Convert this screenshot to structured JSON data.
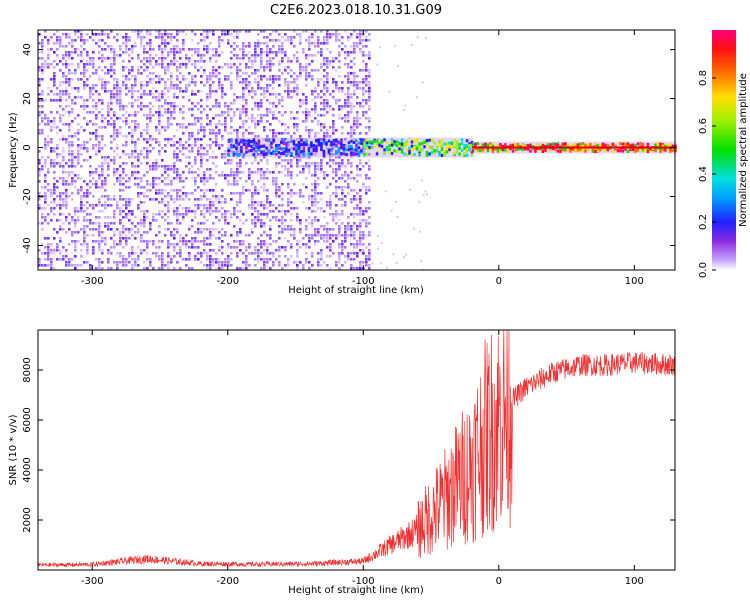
{
  "title": "C2E6.2023.018.10.31.G09",
  "colors": {
    "snr_line": "#f03030",
    "axis": "#000000"
  },
  "chart_data": [
    {
      "type": "heatmap",
      "xlabel": "Height of straight line (km)",
      "ylabel": "Frequency (Hz)",
      "xlim": [
        -340,
        130
      ],
      "ylim": [
        -50,
        48
      ],
      "xticks": [
        -300,
        -200,
        -100,
        0,
        100
      ],
      "yticks": [
        -40,
        -20,
        0,
        20,
        40
      ],
      "colorbar": {
        "label": "Normalized spectral amplitude",
        "range": [
          0,
          1
        ],
        "ticks": [
          0.0,
          0.2,
          0.4,
          0.6,
          0.8
        ],
        "colormap": "rainbow"
      },
      "noise_region_x": [
        -340,
        -95
      ],
      "signal_center_freq": 0,
      "signal_segments": [
        {
          "x": [
            -200,
            -100
          ],
          "amplitude": 0.35
        },
        {
          "x": [
            -100,
            -20
          ],
          "amplitude": 0.55
        },
        {
          "x": [
            -20,
            130
          ],
          "amplitude": 0.95
        }
      ]
    },
    {
      "type": "line",
      "xlabel": "Height of straight line (km)",
      "ylabel": "SNR (10 * v/v)",
      "xlim": [
        -340,
        130
      ],
      "ylim": [
        0,
        9600
      ],
      "xticks": [
        -300,
        -200,
        -100,
        0,
        100
      ],
      "yticks": [
        2000,
        4000,
        6000,
        8000
      ],
      "series": [
        {
          "x": [
            -340,
            -300,
            -260,
            -220,
            -180,
            -140,
            -100,
            -80,
            -60,
            -40,
            -20,
            -10,
            0,
            10,
            20,
            40,
            60,
            80,
            100,
            130
          ],
          "values": [
            200,
            220,
            450,
            250,
            230,
            250,
            350,
            1000,
            1600,
            2800,
            4200,
            5300,
            6000,
            6800,
            7300,
            7900,
            8200,
            8200,
            8300,
            8200
          ]
        }
      ]
    }
  ]
}
